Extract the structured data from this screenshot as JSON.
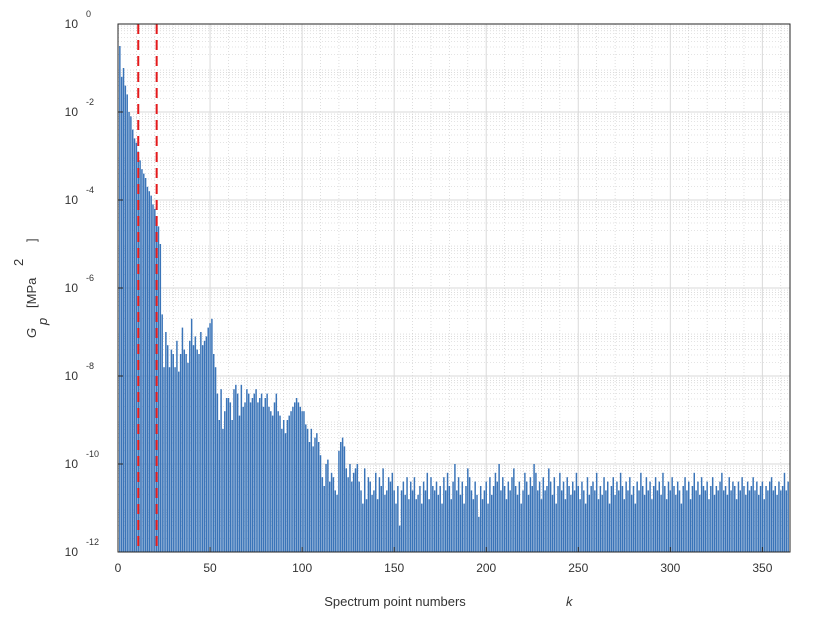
{
  "chart_data": {
    "type": "bar",
    "xlabel": "Spectrum point numbers",
    "xlabel_var": "k",
    "ylabel": {
      "symbol": "G",
      "subscript": "p",
      "unit": "[MPa",
      "unit_exp": "2",
      "close": "]"
    },
    "y_scale": "log",
    "xlim": [
      0,
      365
    ],
    "ylim": [
      1e-12,
      1
    ],
    "grid": true,
    "minor_grid": true,
    "x_ticks": [
      {
        "value": 0,
        "label": "0"
      },
      {
        "value": 50,
        "label": "50"
      },
      {
        "value": 100,
        "label": "100"
      },
      {
        "value": 150,
        "label": "150"
      },
      {
        "value": 200,
        "label": "200"
      },
      {
        "value": 250,
        "label": "250"
      },
      {
        "value": 300,
        "label": "300"
      },
      {
        "value": 350,
        "label": "350"
      }
    ],
    "y_ticks": [
      {
        "exp": 0,
        "base": "10",
        "sup": "0"
      },
      {
        "exp": -2,
        "base": "10",
        "sup": "-2"
      },
      {
        "exp": -4,
        "base": "10",
        "sup": "-4"
      },
      {
        "exp": -6,
        "base": "10",
        "sup": "-6"
      },
      {
        "exp": -8,
        "base": "10",
        "sup": "-8"
      },
      {
        "exp": -10,
        "base": "10",
        "sup": "-10"
      },
      {
        "exp": -12,
        "base": "10",
        "sup": "-12"
      }
    ],
    "bar_color": "#3a74b8",
    "marker_color": "#e41a1c",
    "markers_x": [
      11,
      21
    ],
    "series": [
      {
        "log10_values": [
          -0.5,
          -1.2,
          -1.0,
          -1.4,
          -1.6,
          -2.0,
          -2.1,
          -2.4,
          -2.6,
          -2.7,
          -2.9,
          -3.1,
          -3.3,
          -3.4,
          -3.5,
          -3.7,
          -3.8,
          -3.9,
          -4.1,
          -4.2,
          -4.4,
          -4.6,
          -5.0,
          -6.6,
          -7.8,
          -7.0,
          -7.3,
          -7.8,
          -7.4,
          -7.5,
          -7.8,
          -7.2,
          -7.9,
          -7.5,
          -6.9,
          -7.4,
          -7.5,
          -7.7,
          -7.2,
          -6.7,
          -7.3,
          -7.1,
          -7.4,
          -7.5,
          -7.0,
          -7.3,
          -7.2,
          -7.1,
          -6.9,
          -6.8,
          -6.7,
          -7.5,
          -7.8,
          -8.4,
          -9.0,
          -8.3,
          -9.2,
          -8.8,
          -8.5,
          -8.5,
          -8.6,
          -9.0,
          -8.3,
          -8.2,
          -8.4,
          -8.9,
          -8.2,
          -8.7,
          -8.6,
          -8.3,
          -8.4,
          -8.6,
          -8.5,
          -8.4,
          -8.3,
          -8.6,
          -8.5,
          -8.4,
          -8.7,
          -8.5,
          -8.4,
          -8.7,
          -8.8,
          -8.9,
          -8.6,
          -8.4,
          -8.8,
          -8.9,
          -9.2,
          -9.0,
          -9.3,
          -9.0,
          -8.9,
          -8.8,
          -8.7,
          -8.6,
          -8.5,
          -8.6,
          -8.7,
          -8.8,
          -8.8,
          -9.1,
          -9.2,
          -9.5,
          -9.2,
          -9.6,
          -9.4,
          -9.3,
          -9.5,
          -9.8,
          -10.3,
          -10.5,
          -10.0,
          -9.9,
          -10.4,
          -10.2,
          -10.3,
          -10.6,
          -10.7,
          -9.7,
          -9.5,
          -9.4,
          -9.6,
          -10.1,
          -10.3,
          -10.0,
          -10.4,
          -10.2,
          -10.1,
          -10.0,
          -10.4,
          -10.6,
          -10.9,
          -10.1,
          -10.8,
          -10.3,
          -10.4,
          -10.7,
          -10.6,
          -10.2,
          -10.8,
          -10.3,
          -10.5,
          -10.1,
          -10.7,
          -10.6,
          -10.3,
          -10.4,
          -10.2,
          -10.6,
          -10.9,
          -10.5,
          -11.4,
          -10.6,
          -10.4,
          -10.7,
          -10.3,
          -10.8,
          -10.4,
          -10.6,
          -10.3,
          -10.8,
          -10.7,
          -10.5,
          -10.9,
          -10.4,
          -10.6,
          -10.2,
          -10.8,
          -10.3,
          -10.5,
          -10.6,
          -10.4,
          -10.7,
          -10.5,
          -10.9,
          -10.3,
          -10.6,
          -10.2,
          -10.5,
          -10.8,
          -10.4,
          -10.0,
          -10.6,
          -10.3,
          -10.7,
          -10.4,
          -10.9,
          -10.5,
          -10.1,
          -10.3,
          -10.6,
          -10.8,
          -10.4,
          -10.7,
          -11.2,
          -10.5,
          -10.8,
          -10.6,
          -10.4,
          -10.9,
          -10.3,
          -10.7,
          -10.5,
          -10.2,
          -10.4,
          -10.0,
          -10.6,
          -10.3,
          -10.5,
          -10.8,
          -10.4,
          -10.6,
          -10.3,
          -10.1,
          -10.5,
          -10.7,
          -10.4,
          -10.9,
          -10.6,
          -10.2,
          -10.4,
          -10.7,
          -10.3,
          -10.5,
          -10.0,
          -10.2,
          -10.6,
          -10.4,
          -10.8,
          -10.3,
          -10.6,
          -10.5,
          -10.1,
          -10.4,
          -10.7,
          -10.3,
          -10.9,
          -10.5,
          -10.2,
          -10.6,
          -10.4,
          -10.8,
          -10.3,
          -10.5,
          -10.7,
          -10.4,
          -10.6,
          -10.2,
          -10.5,
          -10.8,
          -10.4,
          -10.6,
          -10.9,
          -10.3,
          -10.7,
          -10.5,
          -10.4,
          -10.6,
          -10.2,
          -10.8,
          -10.5,
          -10.7,
          -10.3,
          -10.6,
          -10.4,
          -10.9,
          -10.5,
          -10.3,
          -10.7,
          -10.4,
          -10.6,
          -10.2,
          -10.5,
          -10.8,
          -10.4,
          -10.6,
          -10.3,
          -10.7,
          -10.5,
          -10.9,
          -10.4,
          -10.6,
          -10.2,
          -10.5,
          -10.7,
          -10.3,
          -10.6,
          -10.4,
          -10.8,
          -10.5,
          -10.3,
          -10.6,
          -10.4,
          -10.7,
          -10.2,
          -10.5,
          -10.8,
          -10.4,
          -10.6,
          -10.3,
          -10.5,
          -10.7,
          -10.4,
          -10.6,
          -10.9,
          -10.5,
          -10.3,
          -10.6,
          -10.4,
          -10.8,
          -10.5,
          -10.2,
          -10.6,
          -10.4,
          -10.7,
          -10.3,
          -10.5,
          -10.6,
          -10.4,
          -10.8,
          -10.5,
          -10.3,
          -10.7,
          -10.5,
          -10.6,
          -10.4,
          -10.2,
          -10.6,
          -10.5,
          -10.7,
          -10.3,
          -10.6,
          -10.4,
          -10.5,
          -10.8,
          -10.4,
          -10.6,
          -10.3,
          -10.5,
          -10.7,
          -10.4,
          -10.6,
          -10.5,
          -10.3,
          -10.6,
          -10.4,
          -10.7,
          -10.5,
          -10.4,
          -10.8,
          -10.5,
          -10.6,
          -10.4,
          -10.3,
          -10.6,
          -10.5,
          -10.7,
          -10.4,
          -10.6,
          -10.5,
          -10.2,
          -10.6,
          -10.4
        ]
      }
    ]
  }
}
